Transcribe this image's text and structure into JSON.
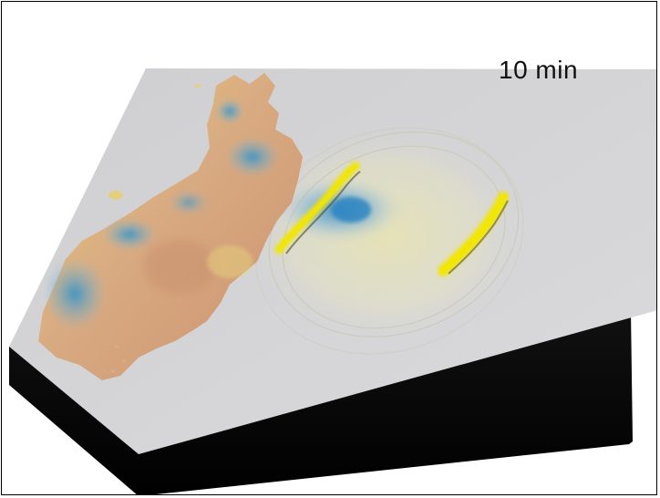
{
  "simulation": {
    "time_label": "10 min"
  },
  "colors": {
    "sea_surface": "#d4d4d6",
    "box_side": "#050505",
    "land_low": "#c89a78",
    "land_mid": "#e8d27a",
    "land_high": "#5aa6c8",
    "wave_crest": "#f2e600",
    "wave_trough": "#3a8fc8"
  }
}
